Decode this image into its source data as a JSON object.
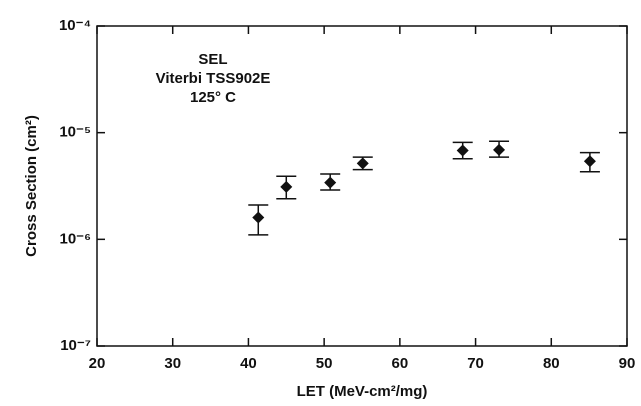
{
  "chart_data": {
    "type": "scatter",
    "x_label": "LET (MeV-cm²/mg)",
    "y_label": "Cross Section (cm²)",
    "annotations": [
      "SEL",
      "Viterbi TSS902E",
      "125° C"
    ],
    "xlim": [
      20,
      90
    ],
    "xticks": [
      20,
      30,
      40,
      50,
      60,
      70,
      80,
      90
    ],
    "ylim": [
      1e-07,
      0.0001
    ],
    "y_scale": "log",
    "yticks": [
      {
        "value": 1e-07,
        "label": "10⁻⁷"
      },
      {
        "value": 1e-06,
        "label": "10⁻⁶"
      },
      {
        "value": 1e-05,
        "label": "10⁻⁵"
      },
      {
        "value": 0.0001,
        "label": "10⁻⁴"
      }
    ],
    "series": [
      {
        "color": "#111111",
        "x": [
          41.3,
          45.0,
          50.8,
          55.1,
          68.3,
          73.1,
          85.1
        ],
        "values": [
          1.6e-06,
          3.1e-06,
          3.4e-06,
          5.15e-06,
          6.8e-06,
          6.9e-06,
          5.4e-06
        ],
        "y_low": [
          1.1e-06,
          2.4e-06,
          2.9e-06,
          4.5e-06,
          5.7e-06,
          5.9e-06,
          4.3e-06
        ],
        "y_high": [
          2.1e-06,
          3.9e-06,
          4.1e-06,
          5.9e-06,
          8.1e-06,
          8.3e-06,
          6.5e-06
        ]
      }
    ]
  }
}
